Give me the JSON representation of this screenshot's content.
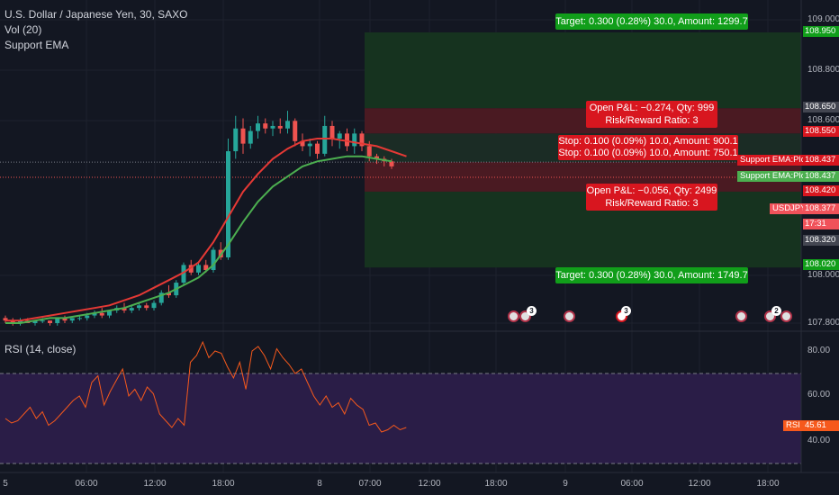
{
  "legend": {
    "symbol": "U.S. Dollar / Japanese Yen, 30, SAXO",
    "vol": "Vol (20)",
    "ema": "Support EMA",
    "rsi": "RSI (14, close)"
  },
  "orders": {
    "target_top": "Target: 0.300 (0.28%) 30.0, Amount: 1299.7",
    "pnl_top_1": "Open P&L: −0.274, Qty: 999",
    "pnl_top_2": "Risk/Reward Ratio: 3",
    "stop_1": "Stop: 0.100 (0.09%) 10.0, Amount: 900.1",
    "stop_2": "Stop: 0.100 (0.09%) 10.0, Amount: 750.1",
    "pnl_bot_1": "Open P&L: −0.056, Qty: 2499",
    "pnl_bot_2": "Risk/Reward Ratio: 3",
    "target_bot": "Target: 0.300 (0.28%) 30.0, Amount: 1749.7"
  },
  "price_axis": {
    "ticks": [
      "109.000",
      "108.800",
      "108.600",
      "108.000",
      "107.800"
    ],
    "labels": {
      "p108950": "108.950",
      "p108650": "108.650",
      "p108550": "108.550",
      "ema_plot_1": "Support EMA:Plot",
      "ema_plot_1_val": "108.437",
      "ema_plot_2": "Support EMA:Plot",
      "ema_plot_2_val": "108.437",
      "p108420": "108.420",
      "symbol_tag": "USDJPY",
      "last_price": "108.377",
      "countdown": "17:31",
      "p108320": "108.320",
      "p108020": "108.020"
    }
  },
  "rsi_axis": {
    "ticks": [
      "80.00",
      "60.00",
      "40.00"
    ],
    "tag": "RSI",
    "value": "45.61"
  },
  "time_axis": [
    "5",
    "06:00",
    "12:00",
    "18:00",
    "8",
    "07:00",
    "12:00",
    "18:00",
    "9",
    "06:00",
    "12:00",
    "18:00"
  ],
  "events": [
    {
      "badge": "3"
    },
    {
      "badge": ""
    },
    {
      "badge": "3"
    },
    {
      "badge": ""
    },
    {
      "badge": "2"
    }
  ],
  "colors": {
    "up": "#26a69a",
    "down": "#ef5350",
    "ema_red": "#e53935",
    "ema_green": "#4caf50",
    "rsi_line": "#f6591c",
    "rsi_band": "#2a1d47",
    "target_zone": "#16331f",
    "stop_zone": "#4a1a22"
  },
  "chart_data": {
    "type": "candlestick",
    "title": "U.S. Dollar / Japanese Yen, 30, SAXO",
    "ylim": [
      107.78,
      109.02
    ],
    "candles": [
      [
        107.82,
        107.83,
        107.8,
        107.81
      ],
      [
        107.81,
        107.82,
        107.79,
        107.8
      ],
      [
        107.8,
        107.82,
        107.79,
        107.81
      ],
      [
        107.81,
        107.82,
        107.8,
        107.8
      ],
      [
        107.8,
        107.81,
        107.79,
        107.81
      ],
      [
        107.81,
        107.82,
        107.8,
        107.81
      ],
      [
        107.81,
        107.81,
        107.79,
        107.8
      ],
      [
        107.8,
        107.82,
        107.79,
        107.82
      ],
      [
        107.82,
        107.83,
        107.8,
        107.81
      ],
      [
        107.81,
        107.82,
        107.8,
        107.82
      ],
      [
        107.82,
        107.83,
        107.81,
        107.82
      ],
      [
        107.82,
        107.84,
        107.81,
        107.83
      ],
      [
        107.83,
        107.85,
        107.82,
        107.84
      ],
      [
        107.84,
        107.86,
        107.82,
        107.83
      ],
      [
        107.83,
        107.85,
        107.82,
        107.85
      ],
      [
        107.85,
        107.87,
        107.84,
        107.86
      ],
      [
        107.86,
        107.88,
        107.84,
        107.85
      ],
      [
        107.85,
        107.87,
        107.84,
        107.86
      ],
      [
        107.86,
        107.88,
        107.85,
        107.87
      ],
      [
        107.87,
        107.88,
        107.85,
        107.86
      ],
      [
        107.86,
        107.89,
        107.85,
        107.88
      ],
      [
        107.88,
        107.93,
        107.87,
        107.92
      ],
      [
        107.92,
        107.95,
        107.9,
        107.91
      ],
      [
        107.91,
        107.97,
        107.9,
        107.96
      ],
      [
        107.96,
        108.04,
        107.95,
        108.03
      ],
      [
        108.03,
        108.05,
        107.99,
        108.0
      ],
      [
        108.0,
        108.04,
        107.99,
        108.03
      ],
      [
        108.03,
        108.05,
        108.0,
        108.01
      ],
      [
        108.01,
        108.1,
        108.0,
        108.09
      ],
      [
        108.09,
        108.12,
        108.05,
        108.06
      ],
      [
        108.06,
        108.53,
        108.05,
        108.48
      ],
      [
        108.48,
        108.62,
        108.45,
        108.57
      ],
      [
        108.57,
        108.61,
        108.47,
        108.51
      ],
      [
        108.51,
        108.58,
        108.49,
        108.56
      ],
      [
        108.56,
        108.62,
        108.53,
        108.59
      ],
      [
        108.59,
        108.61,
        108.55,
        108.57
      ],
      [
        108.57,
        108.6,
        108.54,
        108.58
      ],
      [
        108.58,
        108.61,
        108.55,
        108.57
      ],
      [
        108.57,
        108.64,
        108.55,
        108.6
      ],
      [
        108.6,
        108.61,
        108.5,
        108.52
      ],
      [
        108.52,
        108.55,
        108.48,
        108.5
      ],
      [
        108.5,
        108.53,
        108.46,
        108.51
      ],
      [
        108.51,
        108.52,
        108.45,
        108.47
      ],
      [
        108.47,
        108.62,
        108.46,
        108.58
      ],
      [
        108.58,
        108.6,
        108.5,
        108.53
      ],
      [
        108.53,
        108.56,
        108.49,
        108.55
      ],
      [
        108.55,
        108.57,
        108.48,
        108.5
      ],
      [
        108.5,
        108.57,
        108.47,
        108.55
      ],
      [
        108.55,
        108.56,
        108.48,
        108.5
      ],
      [
        108.5,
        108.52,
        108.44,
        108.46
      ],
      [
        108.46,
        108.47,
        108.43,
        108.45
      ],
      [
        108.45,
        108.46,
        108.42,
        108.44
      ],
      [
        108.44,
        108.45,
        108.41,
        108.42
      ]
    ],
    "ema_red": [
      107.81,
      107.81,
      107.82,
      107.83,
      107.84,
      107.85,
      107.86,
      107.87,
      107.89,
      107.91,
      107.94,
      107.97,
      108.0,
      108.04,
      108.12,
      108.22,
      108.32,
      108.39,
      108.45,
      108.49,
      108.52,
      108.53,
      108.53,
      108.52,
      108.51,
      108.5,
      108.48,
      108.46
    ],
    "ema_green": [
      107.8,
      107.8,
      107.81,
      107.82,
      107.82,
      107.83,
      107.84,
      107.85,
      107.86,
      107.88,
      107.9,
      107.92,
      107.95,
      107.98,
      108.03,
      108.11,
      108.2,
      108.28,
      108.34,
      108.38,
      108.42,
      108.44,
      108.45,
      108.46,
      108.46,
      108.45,
      108.44
    ],
    "rsi": [
      50,
      48,
      49,
      52,
      55,
      50,
      53,
      47,
      49,
      52,
      55,
      58,
      60,
      55,
      66,
      69,
      56,
      62,
      67,
      72,
      60,
      63,
      58,
      64,
      61,
      52,
      49,
      46,
      50,
      47,
      75,
      78,
      84,
      77,
      80,
      79,
      73,
      68,
      75,
      63,
      80,
      82,
      78,
      72,
      81,
      77,
      74,
      70,
      72,
      66,
      60,
      56,
      60,
      55,
      57,
      52,
      59,
      56,
      54,
      47,
      48,
      44,
      45,
      47,
      45,
      46
    ]
  }
}
